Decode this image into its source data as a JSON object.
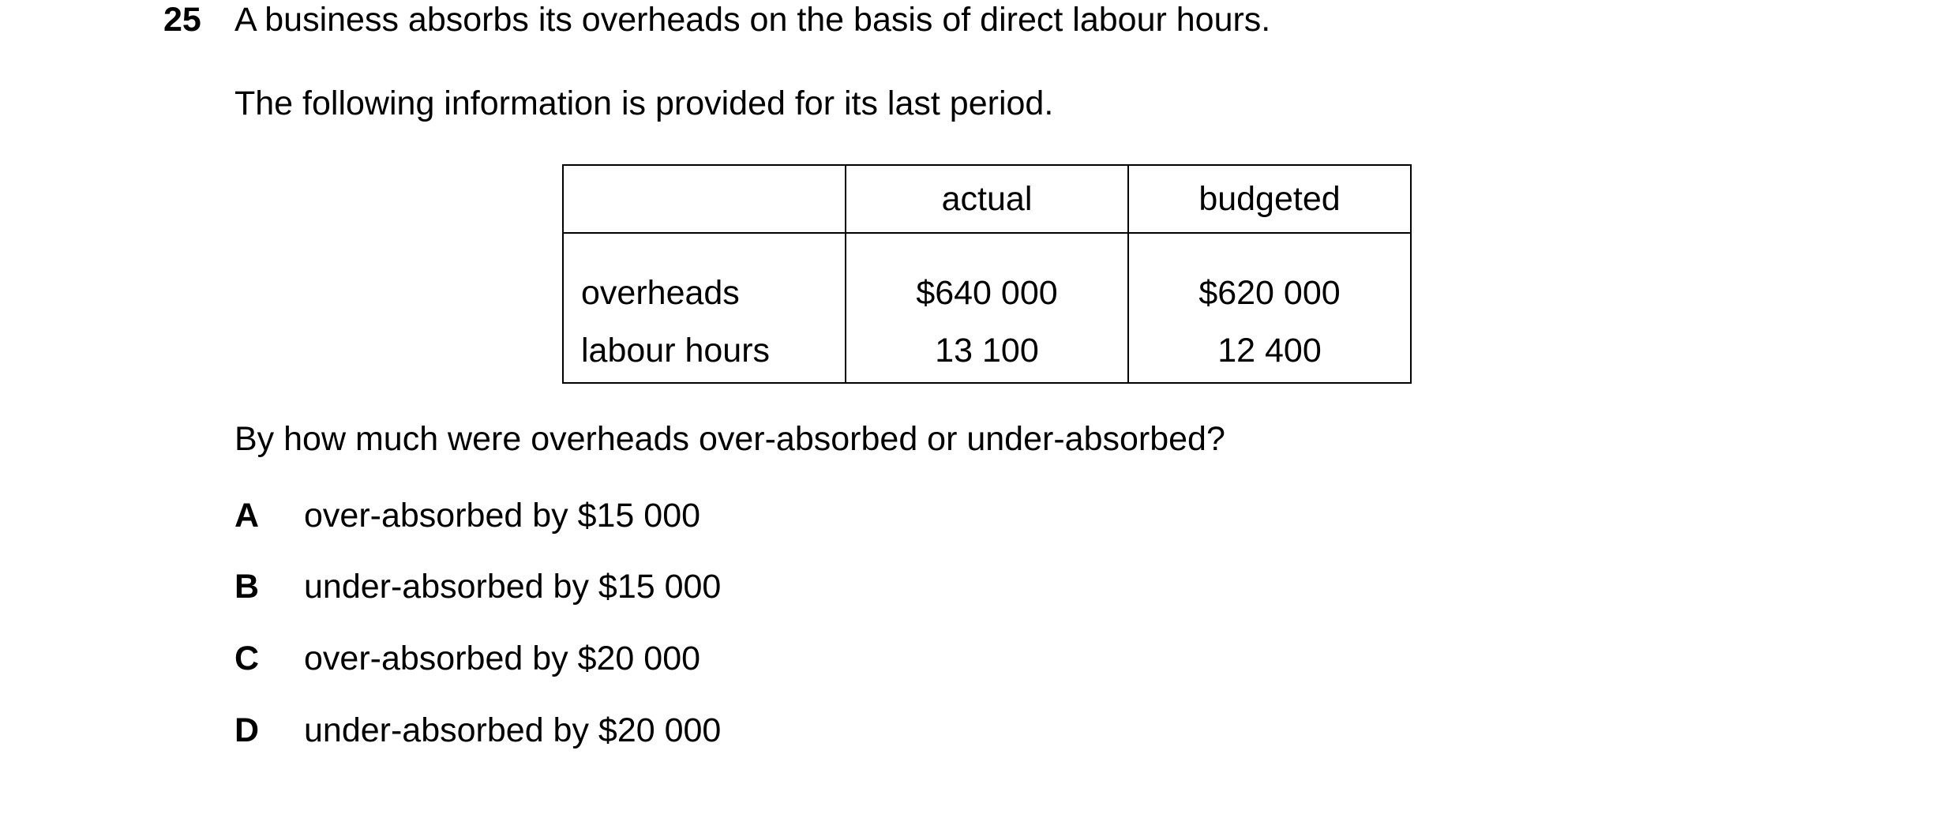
{
  "question": {
    "number": "25",
    "stem": "A business absorbs its overheads on the basis of direct labour hours.",
    "intro": "The following information is provided for its last period.",
    "prompt": "By how much were overheads over-absorbed or under-absorbed?"
  },
  "table": {
    "headers": [
      "",
      "actual",
      "budgeted"
    ],
    "rows": [
      {
        "label": "overheads",
        "actual": "$640 000",
        "budgeted": "$620 000"
      },
      {
        "label": "labour hours",
        "actual": "13 100",
        "budgeted": "12 400"
      }
    ]
  },
  "options": [
    {
      "letter": "A",
      "text": "over-absorbed by $15 000"
    },
    {
      "letter": "B",
      "text": "under-absorbed by $15 000"
    },
    {
      "letter": "C",
      "text": "over-absorbed by $20 000"
    },
    {
      "letter": "D",
      "text": "under-absorbed by $20 000"
    }
  ]
}
